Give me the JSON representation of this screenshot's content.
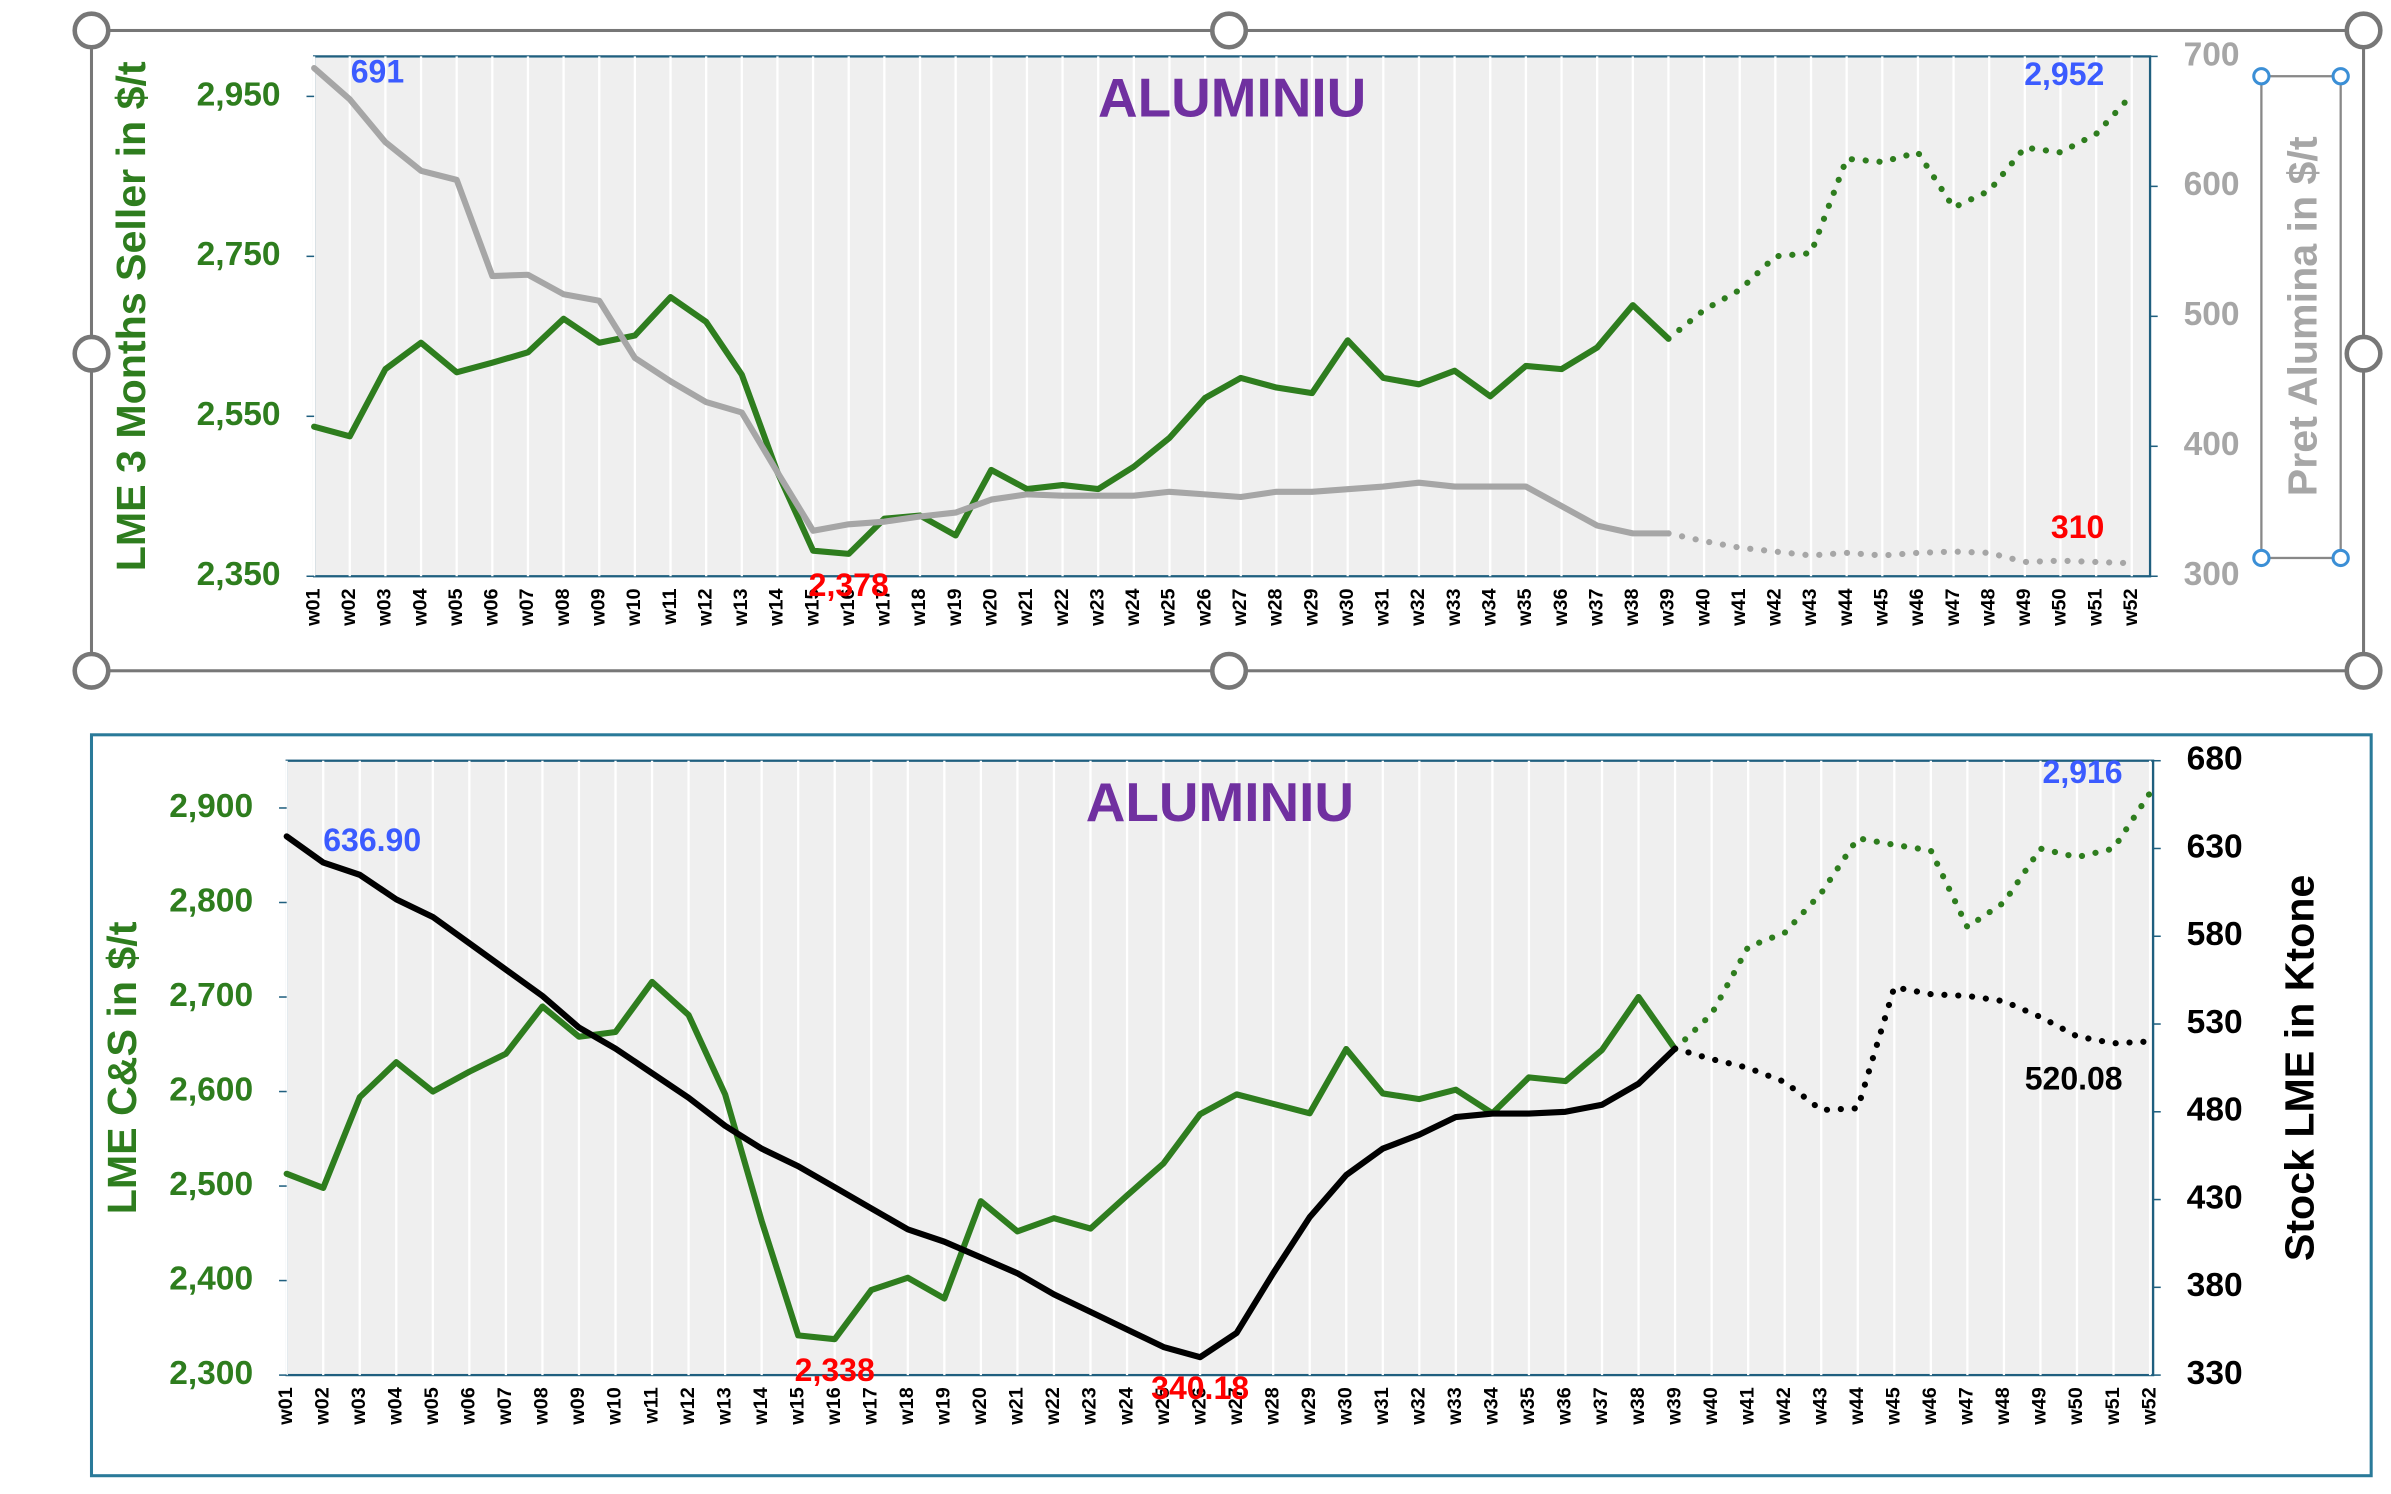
{
  "chart_data": [
    {
      "type": "line",
      "title": "ALUMINIU",
      "y_label": "LME 3 Months Seller in $/t",
      "y2_label": "Pret Alumina in $/t",
      "categories": [
        "w01",
        "w02",
        "w03",
        "w04",
        "w05",
        "w06",
        "w07",
        "w08",
        "w09",
        "w10",
        "w11",
        "w12",
        "w13",
        "w14",
        "w15",
        "w16",
        "w17",
        "w18",
        "w19",
        "w20",
        "w21",
        "w22",
        "w23",
        "w24",
        "w25",
        "w26",
        "w27",
        "w28",
        "w29",
        "w30",
        "w31",
        "w32",
        "w33",
        "w34",
        "w35",
        "w36",
        "w37",
        "w38",
        "w39",
        "w40",
        "w41",
        "w42",
        "w43",
        "w44",
        "w45",
        "w46",
        "w47",
        "w48",
        "w49",
        "w50",
        "w51",
        "w52"
      ],
      "ylim": [
        2350,
        3000
      ],
      "yticks": [
        {
          "value": 2350,
          "label": "2,350"
        },
        {
          "value": 2550,
          "label": "2,550"
        },
        {
          "value": 2750,
          "label": "2,750"
        },
        {
          "value": 2950,
          "label": "2,950"
        }
      ],
      "y2lim": [
        300,
        700
      ],
      "y2ticks": [
        300,
        400,
        500,
        600,
        700
      ],
      "xgrid": true,
      "series": [
        {
          "color": "#2e7d1e",
          "style": "solid",
          "axis": "y",
          "values": [
            2537,
            2525,
            2609,
            2642,
            2605,
            2617,
            2630,
            2672,
            2642,
            2651,
            2699,
            2668,
            2602,
            2480,
            2382,
            2378,
            2422,
            2426,
            2401,
            2483,
            2459,
            2464,
            2459,
            2487,
            2523,
            2573,
            2598,
            2586,
            2579,
            2645,
            2598,
            2590,
            2607,
            2575,
            2613,
            2609,
            2636,
            2689,
            2647,
            null,
            null,
            null,
            null,
            null,
            null,
            null,
            null,
            null,
            null,
            null,
            null,
            null
          ],
          "value_labels": [
            null,
            null,
            null,
            null,
            null,
            null,
            null,
            null,
            null,
            null,
            null,
            null,
            null,
            null,
            null,
            "2,378",
            null,
            null,
            null,
            null,
            null,
            null,
            null,
            null,
            null,
            null,
            null,
            null,
            null,
            null,
            null,
            null,
            null,
            null,
            null,
            null,
            null,
            null,
            null,
            null,
            null,
            null,
            null,
            null,
            null,
            null,
            null,
            null,
            null,
            null,
            null,
            null
          ]
        },
        {
          "color": "#2e7d1e",
          "style": "dotted",
          "axis": "y",
          "values": [
            null,
            null,
            null,
            null,
            null,
            null,
            null,
            null,
            null,
            null,
            null,
            null,
            null,
            null,
            null,
            null,
            null,
            null,
            null,
            null,
            null,
            null,
            null,
            null,
            null,
            null,
            null,
            null,
            null,
            null,
            null,
            null,
            null,
            null,
            null,
            null,
            null,
            null,
            2647,
            2683,
            2708,
            2750,
            2754,
            2872,
            2868,
            2880,
            2811,
            2832,
            2886,
            2880,
            2903,
            2952
          ],
          "value_labels": [
            null,
            null,
            null,
            null,
            null,
            null,
            null,
            null,
            null,
            null,
            null,
            null,
            null,
            null,
            null,
            null,
            null,
            null,
            null,
            null,
            null,
            null,
            null,
            null,
            null,
            null,
            null,
            null,
            null,
            null,
            null,
            null,
            null,
            null,
            null,
            null,
            null,
            null,
            null,
            null,
            null,
            null,
            null,
            null,
            null,
            null,
            null,
            null,
            null,
            null,
            null,
            "2,952"
          ]
        },
        {
          "color": "#a6a6a6",
          "style": "solid",
          "axis": "y2",
          "values": [
            691,
            667,
            634,
            612,
            605,
            531,
            532,
            517,
            512,
            468,
            450,
            434,
            426,
            380,
            335,
            340,
            342,
            346,
            349,
            359,
            363,
            362,
            362,
            362,
            365,
            363,
            361,
            365,
            365,
            367,
            369,
            372,
            369,
            369,
            369,
            354,
            339,
            333,
            333,
            null,
            null,
            null,
            null,
            null,
            null,
            null,
            null,
            null,
            null,
            null,
            null,
            null
          ],
          "value_labels": [
            "691",
            null,
            null,
            null,
            null,
            null,
            null,
            null,
            null,
            null,
            null,
            null,
            null,
            null,
            null,
            null,
            null,
            null,
            null,
            null,
            null,
            null,
            null,
            null,
            null,
            null,
            null,
            null,
            null,
            null,
            null,
            null,
            null,
            null,
            null,
            null,
            null,
            null,
            null,
            null,
            null,
            null,
            null,
            null,
            null,
            null,
            null,
            null,
            null,
            null,
            null,
            null
          ]
        },
        {
          "color": "#a6a6a6",
          "style": "dotted",
          "axis": "y2",
          "values": [
            null,
            null,
            null,
            null,
            null,
            null,
            null,
            null,
            null,
            null,
            null,
            null,
            null,
            null,
            null,
            null,
            null,
            null,
            null,
            null,
            null,
            null,
            null,
            null,
            null,
            null,
            null,
            null,
            null,
            null,
            null,
            null,
            null,
            null,
            null,
            null,
            null,
            null,
            333,
            327,
            322,
            319,
            316,
            318,
            316,
            318,
            319,
            318,
            311,
            312,
            311,
            310
          ],
          "value_labels": [
            null,
            null,
            null,
            null,
            null,
            null,
            null,
            null,
            null,
            null,
            null,
            null,
            null,
            null,
            null,
            null,
            null,
            null,
            null,
            null,
            null,
            null,
            null,
            null,
            null,
            null,
            null,
            null,
            null,
            null,
            null,
            null,
            null,
            null,
            null,
            null,
            null,
            null,
            null,
            null,
            null,
            null,
            null,
            null,
            null,
            null,
            null,
            null,
            null,
            null,
            null,
            "310"
          ]
        }
      ]
    },
    {
      "type": "line",
      "title": "ALUMINIU",
      "y_label": "LME C&S in $/t",
      "y2_label": "Stock LME in Ktone",
      "categories": [
        "w01",
        "w02",
        "w03",
        "w04",
        "w05",
        "w06",
        "w07",
        "w08",
        "w09",
        "w10",
        "w11",
        "w12",
        "w13",
        "w14",
        "w15",
        "w16",
        "w17",
        "w18",
        "w19",
        "w20",
        "w21",
        "w22",
        "w23",
        "w24",
        "w25",
        "w26",
        "w27",
        "w28",
        "w29",
        "w30",
        "w31",
        "w32",
        "w33",
        "w34",
        "w35",
        "w36",
        "w37",
        "w38",
        "w39",
        "w40",
        "w41",
        "w42",
        "w43",
        "w44",
        "w45",
        "w46",
        "w47",
        "w48",
        "w49",
        "w50",
        "w51",
        "w52"
      ],
      "ylim": [
        2300,
        2950
      ],
      "yticks": [
        {
          "value": 2300,
          "label": "2,300"
        },
        {
          "value": 2400,
          "label": "2,400"
        },
        {
          "value": 2500,
          "label": "2,500"
        },
        {
          "value": 2600,
          "label": "2,600"
        },
        {
          "value": 2700,
          "label": "2,700"
        },
        {
          "value": 2800,
          "label": "2,800"
        },
        {
          "value": 2900,
          "label": "2,900"
        }
      ],
      "y2lim": [
        330,
        680
      ],
      "y2ticks": [
        330,
        380,
        430,
        480,
        530,
        580,
        630,
        680
      ],
      "xgrid": true,
      "series": [
        {
          "color": "#2e7d1e",
          "style": "solid",
          "axis": "y",
          "values": [
            2513,
            2498,
            2594,
            2631,
            2600,
            2621,
            2640,
            2690,
            2658,
            2663,
            2716,
            2681,
            2597,
            2463,
            2342,
            2338,
            2390,
            2403,
            2381,
            2484,
            2452,
            2466,
            2455,
            2490,
            2524,
            2576,
            2597,
            2587,
            2577,
            2645,
            2598,
            2592,
            2602,
            2577,
            2615,
            2611,
            2644,
            2700,
            2645,
            null,
            null,
            null,
            null,
            null,
            null,
            null,
            null,
            null,
            null,
            null,
            null,
            null
          ],
          "value_labels": [
            null,
            null,
            null,
            null,
            null,
            null,
            null,
            null,
            null,
            null,
            null,
            null,
            null,
            null,
            null,
            "2,338",
            null,
            null,
            null,
            null,
            null,
            null,
            null,
            null,
            null,
            null,
            null,
            null,
            null,
            null,
            null,
            null,
            null,
            null,
            null,
            null,
            null,
            null,
            null,
            null,
            null,
            null,
            null,
            null,
            null,
            null,
            null,
            null,
            null,
            null,
            null,
            null
          ]
        },
        {
          "color": "#2e7d1e",
          "style": "dotted",
          "axis": "y",
          "values": [
            null,
            null,
            null,
            null,
            null,
            null,
            null,
            null,
            null,
            null,
            null,
            null,
            null,
            null,
            null,
            null,
            null,
            null,
            null,
            null,
            null,
            null,
            null,
            null,
            null,
            null,
            null,
            null,
            null,
            null,
            null,
            null,
            null,
            null,
            null,
            null,
            null,
            null,
            2645,
            2682,
            2753,
            2768,
            2810,
            2868,
            2861,
            2855,
            2774,
            2800,
            2857,
            2848,
            2857,
            2916
          ],
          "value_labels": [
            null,
            null,
            null,
            null,
            null,
            null,
            null,
            null,
            null,
            null,
            null,
            null,
            null,
            null,
            null,
            null,
            null,
            null,
            null,
            null,
            null,
            null,
            null,
            null,
            null,
            null,
            null,
            null,
            null,
            null,
            null,
            null,
            null,
            null,
            null,
            null,
            null,
            null,
            null,
            null,
            null,
            null,
            null,
            null,
            null,
            null,
            null,
            null,
            null,
            null,
            null,
            "2,916"
          ]
        },
        {
          "color": "#000000",
          "style": "solid",
          "axis": "y2",
          "values": [
            636.9,
            622,
            615,
            601,
            591,
            576,
            561,
            546,
            528,
            516,
            502,
            488,
            472,
            459,
            449,
            437,
            425,
            413,
            406,
            397,
            388,
            376,
            366,
            356,
            346,
            340.18,
            354,
            388,
            420,
            444,
            459,
            467,
            477,
            479,
            479,
            480,
            484,
            496,
            516,
            null,
            null,
            null,
            null,
            null,
            null,
            null,
            null,
            null,
            null,
            null,
            null,
            null
          ],
          "value_labels": [
            "636.90",
            null,
            null,
            null,
            null,
            null,
            null,
            null,
            null,
            null,
            null,
            null,
            null,
            null,
            null,
            null,
            null,
            null,
            null,
            null,
            null,
            null,
            null,
            null,
            null,
            "340.18",
            null,
            null,
            null,
            null,
            null,
            null,
            null,
            null,
            null,
            null,
            null,
            null,
            null,
            null,
            null,
            null,
            null,
            null,
            null,
            null,
            null,
            null,
            null,
            null,
            null,
            null
          ]
        },
        {
          "color": "#000000",
          "style": "dotted",
          "axis": "y2",
          "values": [
            null,
            null,
            null,
            null,
            null,
            null,
            null,
            null,
            null,
            null,
            null,
            null,
            null,
            null,
            null,
            null,
            null,
            null,
            null,
            null,
            null,
            null,
            null,
            null,
            null,
            null,
            null,
            null,
            null,
            null,
            null,
            null,
            null,
            null,
            null,
            null,
            null,
            null,
            516,
            510,
            505,
            497,
            481,
            482,
            551,
            547,
            546,
            543,
            534,
            523,
            519,
            520.08
          ],
          "value_labels": [
            null,
            null,
            null,
            null,
            null,
            null,
            null,
            null,
            null,
            null,
            null,
            null,
            null,
            null,
            null,
            null,
            null,
            null,
            null,
            null,
            null,
            null,
            null,
            null,
            null,
            null,
            null,
            null,
            null,
            null,
            null,
            null,
            null,
            null,
            null,
            null,
            null,
            null,
            null,
            null,
            null,
            null,
            null,
            null,
            null,
            null,
            null,
            null,
            null,
            null,
            null,
            "520.08"
          ]
        }
      ]
    }
  ]
}
